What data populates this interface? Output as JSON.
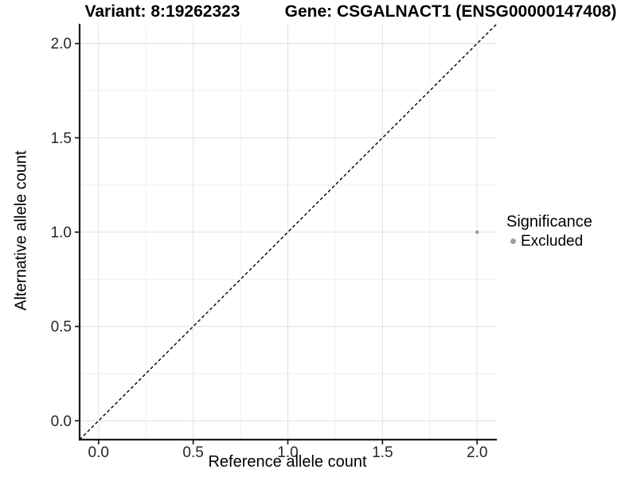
{
  "chart_data": {
    "type": "scatter",
    "titles": {
      "left": "Variant: 8:19262323",
      "right": "Gene: CSGALNACT1 (ENSG00000147408)"
    },
    "xlabel": "Reference allele count",
    "ylabel": "Alternative allele count",
    "xlim": [
      -0.1,
      2.1
    ],
    "ylim": [
      -0.1,
      2.1
    ],
    "x_ticks": {
      "values": [
        0,
        0.5,
        1,
        1.5,
        2
      ],
      "labels": [
        "0.0",
        "0.5",
        "1.0",
        "1.5",
        "2.0"
      ]
    },
    "y_ticks": {
      "values": [
        0,
        0.5,
        1,
        1.5,
        2
      ],
      "labels": [
        "0.0",
        "0.5",
        "1.0",
        "1.5",
        "2.0"
      ]
    },
    "minor_gridlines": [
      0.25,
      0.75,
      1.25,
      1.75
    ],
    "grid": "major+minor",
    "reference_line": {
      "description": "identity line y = x",
      "style": "dashed",
      "from": [
        -0.1,
        -0.1
      ],
      "to": [
        2.1,
        2.1
      ]
    },
    "series": [
      {
        "name": "Excluded",
        "marker": "circle",
        "color": "#9f9f9f",
        "points": [
          [
            2.0,
            1.0
          ]
        ]
      }
    ],
    "legend": {
      "title": "Significance",
      "position": "right",
      "items": [
        {
          "label": "Excluded",
          "color": "#9f9f9f",
          "marker": "circle"
        }
      ]
    },
    "colors": {
      "background": "#ffffff",
      "grid_major": "#e3e3e3",
      "grid_minor": "#efefef",
      "axis": "#1a1a1a",
      "tick_label": "#262626",
      "title": "#000000",
      "reference_line": "#000000"
    }
  }
}
